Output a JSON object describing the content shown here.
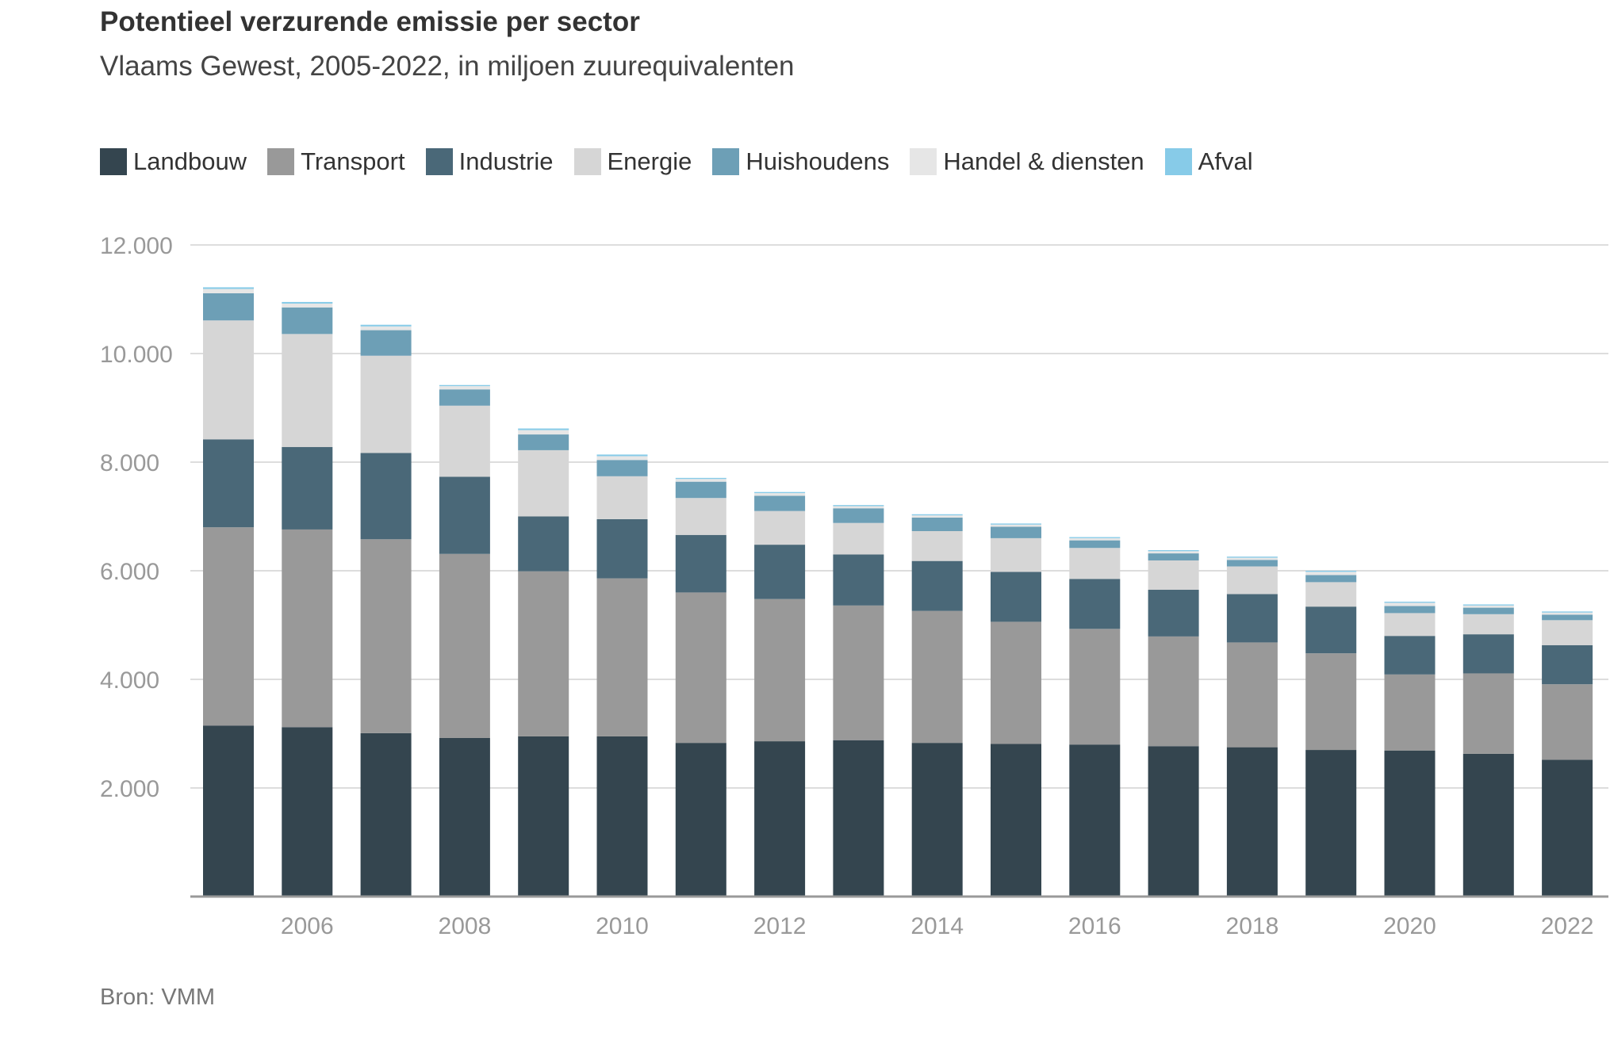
{
  "chart_data": {
    "type": "bar",
    "stacked": true,
    "title": "Potentieel verzurende emissie per sector",
    "subtitle": "Vlaams Gewest, 2005-2022, in miljoen zuurequivalenten",
    "source": "Bron: VMM",
    "x": [
      2005,
      2006,
      2007,
      2008,
      2009,
      2010,
      2011,
      2012,
      2013,
      2014,
      2015,
      2016,
      2017,
      2018,
      2019,
      2020,
      2021,
      2022
    ],
    "x_tick_labels": [
      "2006",
      "2008",
      "2010",
      "2012",
      "2014",
      "2016",
      "2018",
      "2020",
      "2022"
    ],
    "y_tick_labels": [
      "2.000",
      "4.000",
      "6.000",
      "8.000",
      "10.000",
      "12.000"
    ],
    "y_ticks": [
      2000,
      4000,
      6000,
      8000,
      10000,
      12000
    ],
    "ylim": [
      0,
      12000
    ],
    "grid": true,
    "legend_position": "top",
    "series": [
      {
        "name": "Landbouw",
        "color": "#34454f",
        "values": [
          3150,
          3120,
          3010,
          2920,
          2950,
          2950,
          2830,
          2860,
          2880,
          2830,
          2810,
          2800,
          2770,
          2750,
          2700,
          2690,
          2630,
          2520
        ]
      },
      {
        "name": "Transport",
        "color": "#999999",
        "values": [
          3650,
          3640,
          3570,
          3390,
          3040,
          2910,
          2770,
          2620,
          2480,
          2430,
          2250,
          2130,
          2020,
          1930,
          1780,
          1400,
          1480,
          1390
        ]
      },
      {
        "name": "Industrie",
        "color": "#4a6878",
        "values": [
          1620,
          1520,
          1590,
          1420,
          1010,
          1090,
          1060,
          1000,
          940,
          920,
          920,
          920,
          860,
          890,
          860,
          710,
          720,
          720
        ]
      },
      {
        "name": "Energie",
        "color": "#d6d6d6",
        "values": [
          2190,
          2080,
          1790,
          1310,
          1220,
          790,
          680,
          620,
          580,
          550,
          620,
          570,
          540,
          510,
          450,
          420,
          370,
          460
        ]
      },
      {
        "name": "Huishoudens",
        "color": "#6d9fb6",
        "values": [
          500,
          490,
          470,
          300,
          290,
          300,
          300,
          280,
          270,
          250,
          210,
          140,
          130,
          120,
          130,
          130,
          120,
          100
        ]
      },
      {
        "name": "Handel & diensten",
        "color": "#e6e6e6",
        "values": [
          80,
          70,
          70,
          60,
          80,
          70,
          50,
          50,
          40,
          40,
          40,
          40,
          40,
          40,
          60,
          60,
          40,
          40
        ]
      },
      {
        "name": "Afval",
        "color": "#87cbe8",
        "values": [
          30,
          30,
          30,
          20,
          30,
          30,
          20,
          20,
          20,
          20,
          20,
          20,
          20,
          20,
          20,
          20,
          20,
          20
        ]
      }
    ]
  }
}
